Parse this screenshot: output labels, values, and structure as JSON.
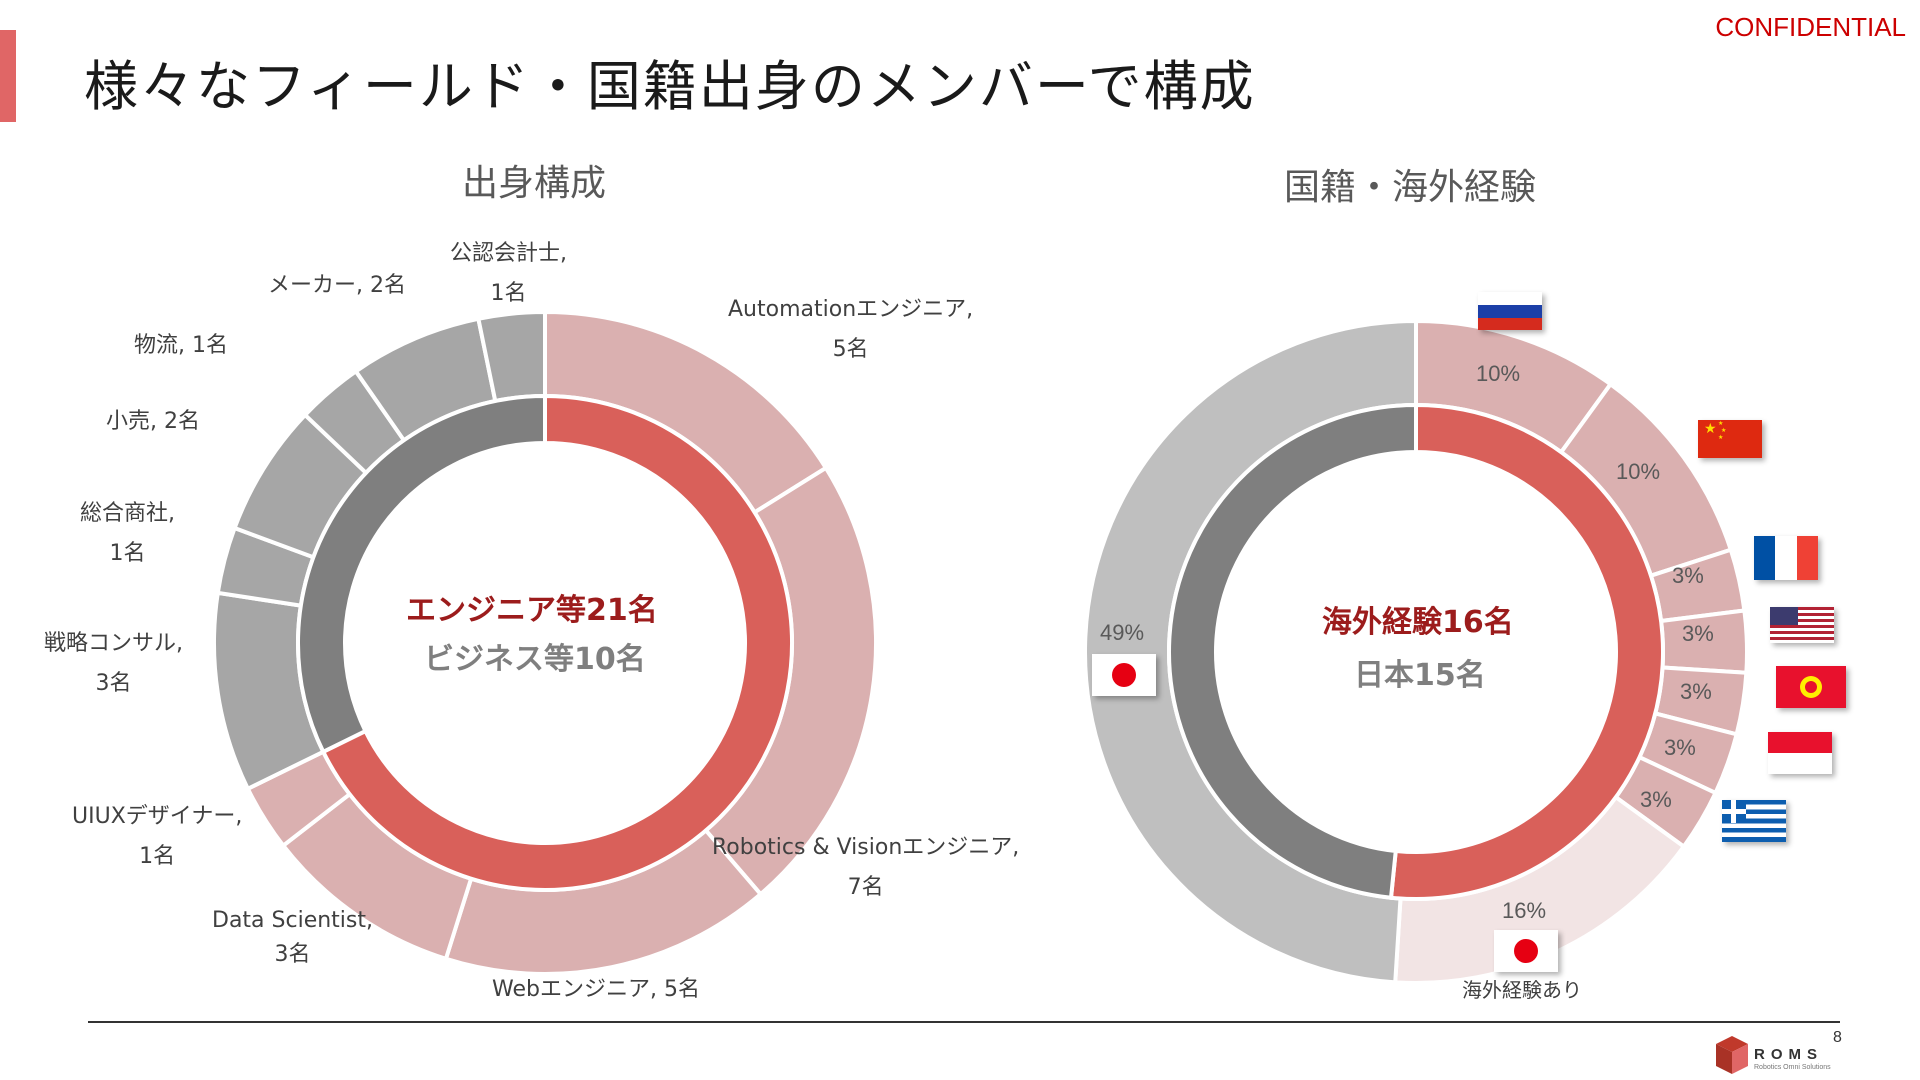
{
  "header": {
    "confidential": "CONFIDENTIAL",
    "title": "様々なフィールド・国籍出身のメンバーで構成",
    "accent_color": "#e06666"
  },
  "chart_data": [
    {
      "type": "pie",
      "subtype": "double-donut",
      "title": "出身構成",
      "center_line1": "エンジニア等21名",
      "center_line2": "ビジネス等10名",
      "inner": [
        {
          "name": "エンジニア等",
          "value": 21,
          "color": "#d9605a"
        },
        {
          "name": "ビジネス等",
          "value": 10,
          "color": "#7f7f7f"
        }
      ],
      "outer": [
        {
          "label": "Automationエンジニア,",
          "count": "5名",
          "value": 5,
          "color": "#dab0b0"
        },
        {
          "label": "Robotics & Visionエンジニア,",
          "count": "7名",
          "value": 7,
          "color": "#dab0b0"
        },
        {
          "label": "Webエンジニア, 5名",
          "count": "",
          "value": 5,
          "color": "#dab0b0"
        },
        {
          "label": "Data Scientist,",
          "count": "3名",
          "value": 3,
          "color": "#dab0b0"
        },
        {
          "label": "UIUXデザイナー,",
          "count": "1名",
          "value": 1,
          "color": "#dab0b0"
        },
        {
          "label": "戦略コンサル,",
          "count": "3名",
          "value": 3,
          "color": "#a6a6a6"
        },
        {
          "label": "総合商社,",
          "count": "1名",
          "value": 1,
          "color": "#a6a6a6"
        },
        {
          "label": "小売, 2名",
          "count": "",
          "value": 2,
          "color": "#a6a6a6"
        },
        {
          "label": "物流, 1名",
          "count": "",
          "value": 1,
          "color": "#a6a6a6"
        },
        {
          "label": "メーカー, 2名",
          "count": "",
          "value": 2,
          "color": "#a6a6a6"
        },
        {
          "label": "公認会計士,",
          "count": "1名",
          "value": 1,
          "color": "#a6a6a6"
        }
      ]
    },
    {
      "type": "pie",
      "subtype": "double-donut",
      "title": "国籍・海外経験",
      "center_line1": "海外経験16名",
      "center_line2": "日本15名",
      "inner": [
        {
          "name": "海外経験",
          "value": 16,
          "color": "#d9605a"
        },
        {
          "name": "日本",
          "value": 15,
          "color": "#7f7f7f"
        }
      ],
      "outer": [
        {
          "label": "10%",
          "value": 10,
          "country": "Russia",
          "color": "#dab0b0"
        },
        {
          "label": "10%",
          "value": 10,
          "country": "China",
          "color": "#dab0b0"
        },
        {
          "label": "3%",
          "value": 3,
          "country": "France",
          "color": "#dab0b0"
        },
        {
          "label": "3%",
          "value": 3,
          "country": "USA",
          "color": "#dab0b0"
        },
        {
          "label": "3%",
          "value": 3,
          "country": "Kyrgyzstan",
          "color": "#dab0b0"
        },
        {
          "label": "3%",
          "value": 3,
          "country": "Indonesia",
          "color": "#dab0b0"
        },
        {
          "label": "3%",
          "value": 3,
          "country": "Greece",
          "color": "#dab0b0"
        },
        {
          "label": "16%",
          "value": 16,
          "country": "Japan",
          "color": "#f2e4e4"
        },
        {
          "label": "49%",
          "value": 49,
          "country": "Japan",
          "color": "#bfbfbf"
        }
      ],
      "note": "海外経験あり"
    }
  ],
  "footer": {
    "page_number": "8",
    "logo_text": "ROMS",
    "logo_sub": "Robotics Omni Solutions"
  }
}
